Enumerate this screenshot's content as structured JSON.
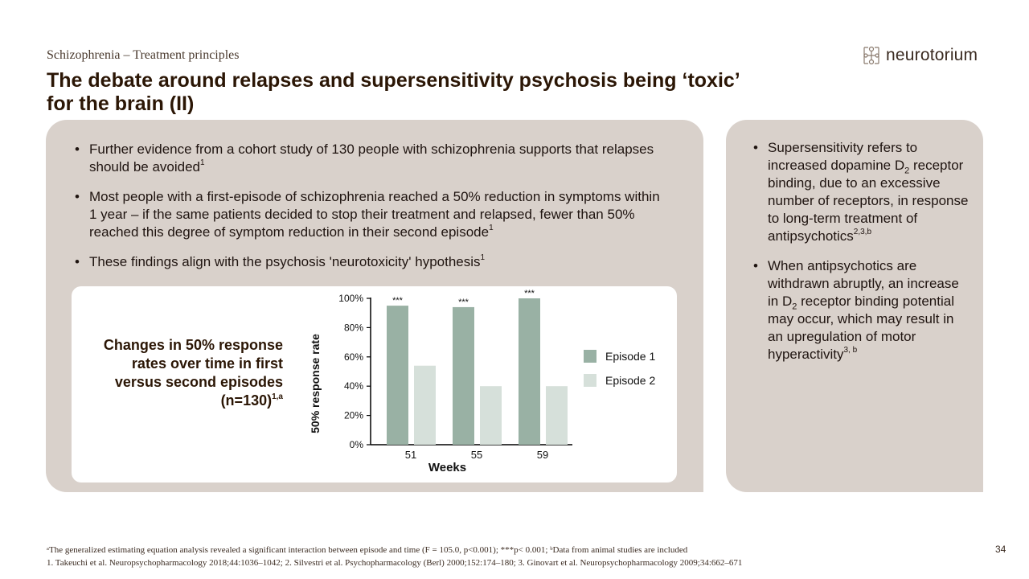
{
  "header": {
    "kicker": "Schizophrenia – Treatment principles",
    "title_line1": "The debate around relapses and supersensitivity psychosis being ‘toxic’",
    "title_line2": "for the brain (II)"
  },
  "logo": {
    "text": "neurotorium",
    "icon": "neuron-grid-icon"
  },
  "left_bullets": [
    {
      "text": "Further evidence from a cohort study of 130 people with schizophrenia supports that relapses should be avoided",
      "sup": "1"
    },
    {
      "text": "Most people with a first-episode of schizophrenia reached a 50% reduction in symptoms within 1 year – if the same patients decided to stop their treatment and relapsed, fewer than 50% reached this degree of symptom reduction in their second episode",
      "sup": "1"
    },
    {
      "text": "These findings align with the psychosis 'neurotoxicity' hypothesis",
      "sup": "1"
    }
  ],
  "right_bullets": [
    {
      "pre": "Supersensitivity refers to increased dopamine D",
      "sub": "2",
      "post": " receptor binding, due to an excessive number of receptors, in response to long-term treatment of antipsychotics",
      "sup": "2,3,b"
    },
    {
      "pre": "When antipsychotics are withdrawn abruptly, an increase in D",
      "sub": "2",
      "post": " receptor binding potential may occur, which may result in an upregulation of motor hyperactivity",
      "sup": "3, b"
    }
  ],
  "chart_caption": {
    "text": "Changes in 50% response rates over time in first versus second episodes (n=130)",
    "sup": "1,a"
  },
  "chart_data": {
    "type": "bar",
    "categories": [
      "51",
      "55",
      "59"
    ],
    "series": [
      {
        "name": "Episode 1",
        "values": [
          95,
          94,
          100
        ],
        "color": "#99b1a4"
      },
      {
        "name": "Episode 2",
        "values": [
          54,
          40,
          40
        ],
        "color": "#d6e0da"
      }
    ],
    "significance": [
      "***",
      "***",
      "***"
    ],
    "xlabel": "Weeks",
    "ylabel": "50% response rate",
    "ylim": [
      0,
      100
    ],
    "yticks": [
      "0%",
      "20%",
      "40%",
      "60%",
      "80%",
      "100%"
    ],
    "legend_position": "right",
    "grid": false
  },
  "footnotes": {
    "line1": "ᵃThe generalized estimating equation analysis revealed a significant interaction between episode and time (F = 105.0, p<0.001); ***p< 0.001; ᵇData from animal studies are included",
    "line2": "1. Takeuchi et al. Neuropsychopharmacology 2018;44:1036–1042; 2. Silvestri et al. Psychopharmacology (Berl) 2000;152:174–180; 3. Ginovart et al. Neuropsychopharmacology 2009;34:662–671"
  },
  "page_number": "34"
}
